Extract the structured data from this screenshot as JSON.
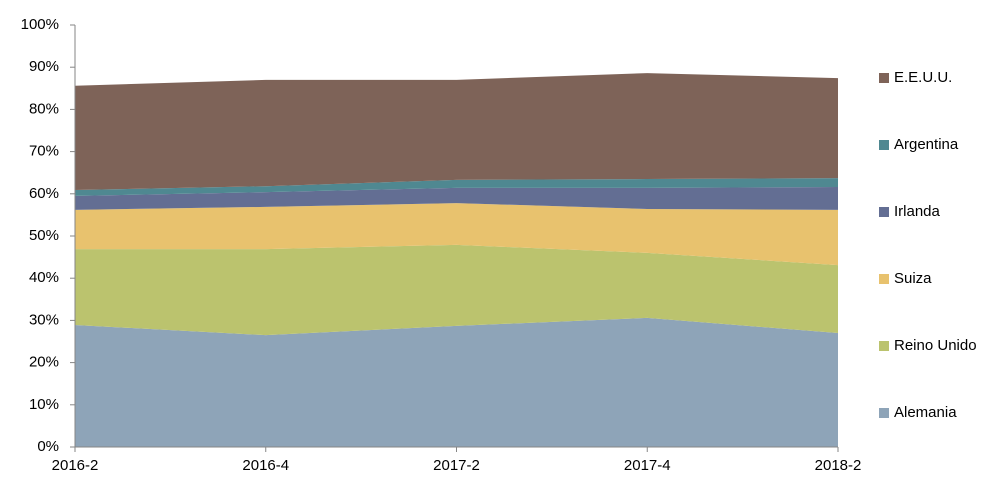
{
  "chart_data": {
    "type": "stacked_area",
    "categories": [
      "2016-2",
      "2016-4",
      "2017-2",
      "2017-4",
      "2018-2"
    ],
    "series": [
      {
        "name": "Alemania",
        "color": "#8ea4b8",
        "values": [
          28.9,
          26.5,
          28.7,
          30.6,
          27.0
        ]
      },
      {
        "name": "Reino Unido",
        "color": "#bbc36e",
        "values": [
          18.0,
          20.4,
          19.2,
          15.4,
          16.1
        ]
      },
      {
        "name": "Suiza",
        "color": "#e8c26e",
        "values": [
          9.3,
          10.0,
          9.9,
          10.4,
          13.1
        ]
      },
      {
        "name": "Irlanda",
        "color": "#636e93",
        "values": [
          3.3,
          3.5,
          3.6,
          5.0,
          5.4
        ]
      },
      {
        "name": "Argentina",
        "color": "#4f8891",
        "values": [
          1.4,
          1.4,
          1.9,
          2.1,
          2.1
        ]
      },
      {
        "name": "E.E.U.U.",
        "color": "#7e6358",
        "values": [
          24.7,
          25.2,
          23.7,
          25.1,
          23.7
        ]
      }
    ],
    "ylim": [
      0,
      100
    ],
    "yticks": [
      {
        "value": 0,
        "label": "0%"
      },
      {
        "value": 10,
        "label": "10%"
      },
      {
        "value": 20,
        "label": "20%"
      },
      {
        "value": 30,
        "label": "30%"
      },
      {
        "value": 40,
        "label": "40%"
      },
      {
        "value": 50,
        "label": "50%"
      },
      {
        "value": 60,
        "label": "60%"
      },
      {
        "value": 70,
        "label": "70%"
      },
      {
        "value": 80,
        "label": "80%"
      },
      {
        "value": 90,
        "label": "90%"
      },
      {
        "value": 100,
        "label": "100%"
      }
    ],
    "grid": false,
    "legend": "right"
  }
}
